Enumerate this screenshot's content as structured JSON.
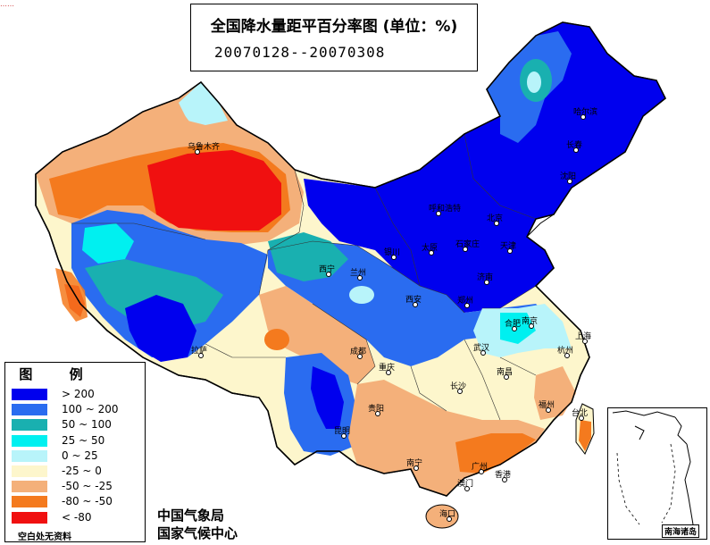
{
  "header": {
    "corner_text": "……",
    "title": "全国降水量距平百分率图 (单位：%)",
    "date_range": "20070128--20070308"
  },
  "legend": {
    "title": "图 例",
    "items": [
      {
        "label": "> 200",
        "color": "#0000ee"
      },
      {
        "label": "100 ~ 200",
        "color": "#2a6cf0"
      },
      {
        "label": "50 ~ 100",
        "color": "#19b0b0"
      },
      {
        "label": "25 ~ 50",
        "color": "#00f0f0"
      },
      {
        "label": "0 ~ 25",
        "color": "#b8f4fa"
      },
      {
        "label": "-25 ~ 0",
        "color": "#fdf6cc"
      },
      {
        "label": "-50 ~ -25",
        "color": "#f4b07a"
      },
      {
        "label": "-80 ~ -50",
        "color": "#f47a1e"
      },
      {
        "label": "< -80",
        "color": "#f01010"
      }
    ],
    "note": "空白处无资料"
  },
  "credits": {
    "line1": "中国气象局",
    "line2": "国家气候中心"
  },
  "inset": {
    "label": "南海诸岛"
  },
  "cities": [
    {
      "name": "乌鲁木齐"
    },
    {
      "name": "哈尔滨"
    },
    {
      "name": "长春"
    },
    {
      "name": "沈阳"
    },
    {
      "name": "呼和浩特"
    },
    {
      "name": "北京"
    },
    {
      "name": "天津"
    },
    {
      "name": "石家庄"
    },
    {
      "name": "太原"
    },
    {
      "name": "银川"
    },
    {
      "name": "济南"
    },
    {
      "name": "西宁"
    },
    {
      "name": "兰州"
    },
    {
      "name": "郑州"
    },
    {
      "name": "西安"
    },
    {
      "name": "合肥"
    },
    {
      "name": "南京"
    },
    {
      "name": "上海"
    },
    {
      "name": "拉萨"
    },
    {
      "name": "成都"
    },
    {
      "name": "武汉"
    },
    {
      "name": "杭州"
    },
    {
      "name": "重庆"
    },
    {
      "name": "长沙"
    },
    {
      "name": "南昌"
    },
    {
      "name": "福州"
    },
    {
      "name": "贵阳"
    },
    {
      "name": "台北"
    },
    {
      "name": "昆明"
    },
    {
      "name": "南宁"
    },
    {
      "name": "广州"
    },
    {
      "name": "香港"
    },
    {
      "name": "澳门"
    },
    {
      "name": "海口"
    }
  ]
}
